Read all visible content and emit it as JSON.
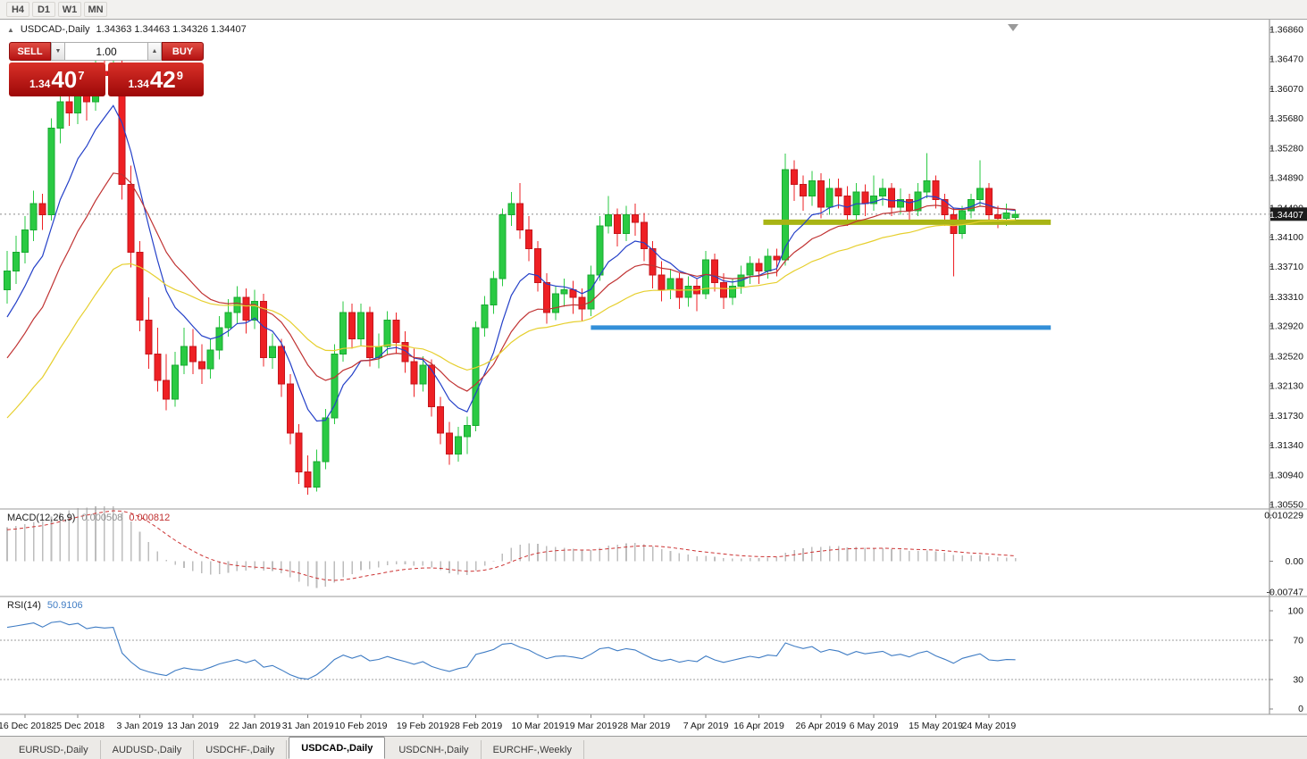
{
  "toolbar": {
    "timeframes": [
      "H4",
      "D1",
      "W1",
      "MN"
    ]
  },
  "chart": {
    "collapse_icon": "▲",
    "symbol_header": "USDCAD-,Daily",
    "ohlc_header": "1.34363 1.34463 1.34326 1.34407",
    "current_price": "1.34407"
  },
  "trade_panel": {
    "sell_label": "SELL",
    "buy_label": "BUY",
    "volume": "1.00",
    "spinner_down": "▼",
    "spinner_up": "▲",
    "sell_price": {
      "figure": "1.34",
      "pips": "40",
      "point": "7"
    },
    "buy_price": {
      "figure": "1.34",
      "pips": "42",
      "point": "9"
    }
  },
  "macd": {
    "label": "MACD(12,26,9)",
    "value_main": "0.000508",
    "value_signal": "0.000812"
  },
  "rsi": {
    "label": "RSI(14)",
    "value": "50.9106"
  },
  "tabs": {
    "items": [
      {
        "label": "EURUSD-,Daily"
      },
      {
        "label": "AUDUSD-,Daily"
      },
      {
        "label": "USDCHF-,Daily"
      },
      {
        "label": "USDCAD-,Daily"
      },
      {
        "label": "USDCNH-,Daily"
      },
      {
        "label": "EURCHF-,Weekly"
      }
    ],
    "active": "USDCAD-,Daily"
  },
  "chart_data": {
    "type": "candlestick",
    "title": "USDCAD Daily",
    "symbol": "USDCAD",
    "timeframe": "Daily",
    "y_range": [
      1.3055,
      1.3686
    ],
    "y_axis_labels": [
      "1.36860",
      "1.36470",
      "1.36070",
      "1.35680",
      "1.35280",
      "1.34890",
      "1.34490",
      "1.34100",
      "1.33710",
      "1.33310",
      "1.32920",
      "1.32520",
      "1.32130",
      "1.31730",
      "1.31340",
      "1.30940",
      "1.30550"
    ],
    "x_tick_labels": [
      "16 Dec 2018",
      "25 Dec 2018",
      "3 Jan 2019",
      "13 Jan 2019",
      "22 Jan 2019",
      "31 Jan 2019",
      "10 Feb 2019",
      "19 Feb 2019",
      "28 Feb 2019",
      "10 Mar 2019",
      "19 Mar 2019",
      "28 Mar 2019",
      "7 Apr 2019",
      "16 Apr 2019",
      "26 Apr 2019",
      "6 May 2019",
      "15 May 2019",
      "24 May 2019"
    ],
    "x_tick_indices": [
      2,
      8,
      15,
      21,
      28,
      34,
      40,
      47,
      53,
      60,
      66,
      72,
      79,
      85,
      92,
      98,
      105,
      111
    ],
    "colors": {
      "up": "#2aca43",
      "up_border": "#18a930",
      "down": "#ee2024",
      "down_border": "#c4161c",
      "bid_line": "#8a8a8a",
      "axis_text": "#141414",
      "badge_bg": "#1c1c1c",
      "badge_text": "#ffffff",
      "macd_hist": "#bdbdbd",
      "macd_signal": "#cc3333",
      "rsi_line": "#3f7cc4",
      "level_line": "#9e9e9e"
    },
    "ohlc": [
      [
        1.334,
        1.3392,
        1.3322,
        1.3365
      ],
      [
        1.3365,
        1.3412,
        1.3348,
        1.339
      ],
      [
        1.339,
        1.3438,
        1.3375,
        1.342
      ],
      [
        1.342,
        1.3472,
        1.3405,
        1.3455
      ],
      [
        1.3455,
        1.3468,
        1.342,
        1.344
      ],
      [
        1.344,
        1.3568,
        1.3432,
        1.3555
      ],
      [
        1.3555,
        1.3605,
        1.3535,
        1.359
      ],
      [
        1.359,
        1.3612,
        1.3558,
        1.3575
      ],
      [
        1.3575,
        1.363,
        1.356,
        1.3615
      ],
      [
        1.3615,
        1.3628,
        1.3565,
        1.359
      ],
      [
        1.359,
        1.3645,
        1.3578,
        1.363
      ],
      [
        1.363,
        1.365,
        1.36,
        1.3625
      ],
      [
        1.3625,
        1.3665,
        1.361,
        1.364
      ],
      [
        1.364,
        1.3655,
        1.346,
        1.348
      ],
      [
        1.348,
        1.3505,
        1.337,
        1.339
      ],
      [
        1.339,
        1.3405,
        1.3285,
        1.33
      ],
      [
        1.33,
        1.333,
        1.3235,
        1.3255
      ],
      [
        1.3255,
        1.329,
        1.3205,
        1.322
      ],
      [
        1.322,
        1.3255,
        1.318,
        1.3195
      ],
      [
        1.3195,
        1.3258,
        1.3185,
        1.324
      ],
      [
        1.324,
        1.329,
        1.3228,
        1.3265
      ],
      [
        1.3265,
        1.3288,
        1.3228,
        1.3245
      ],
      [
        1.3245,
        1.3268,
        1.3215,
        1.3235
      ],
      [
        1.3235,
        1.3275,
        1.3222,
        1.326
      ],
      [
        1.326,
        1.3305,
        1.3248,
        1.329
      ],
      [
        1.329,
        1.3328,
        1.3278,
        1.331
      ],
      [
        1.331,
        1.3345,
        1.3295,
        1.333
      ],
      [
        1.333,
        1.3342,
        1.3282,
        1.33
      ],
      [
        1.33,
        1.334,
        1.3288,
        1.3325
      ],
      [
        1.3325,
        1.3335,
        1.3238,
        1.325
      ],
      [
        1.325,
        1.3282,
        1.3235,
        1.3265
      ],
      [
        1.3265,
        1.3275,
        1.3198,
        1.3215
      ],
      [
        1.3215,
        1.3228,
        1.3135,
        1.315
      ],
      [
        1.315,
        1.3162,
        1.3082,
        1.3098
      ],
      [
        1.3098,
        1.312,
        1.3068,
        1.3078
      ],
      [
        1.3078,
        1.3128,
        1.3072,
        1.3112
      ],
      [
        1.3112,
        1.3182,
        1.3102,
        1.317
      ],
      [
        1.317,
        1.3268,
        1.3162,
        1.3255
      ],
      [
        1.3255,
        1.3325,
        1.3245,
        1.331
      ],
      [
        1.331,
        1.3322,
        1.3262,
        1.3275
      ],
      [
        1.3275,
        1.3322,
        1.3265,
        1.331
      ],
      [
        1.331,
        1.3318,
        1.3238,
        1.325
      ],
      [
        1.325,
        1.3282,
        1.3236,
        1.3265
      ],
      [
        1.3265,
        1.3312,
        1.3255,
        1.33
      ],
      [
        1.33,
        1.331,
        1.3255,
        1.327
      ],
      [
        1.327,
        1.3285,
        1.323,
        1.3245
      ],
      [
        1.3245,
        1.3262,
        1.3198,
        1.3215
      ],
      [
        1.3215,
        1.3252,
        1.3205,
        1.324
      ],
      [
        1.324,
        1.3248,
        1.3172,
        1.3185
      ],
      [
        1.3185,
        1.3198,
        1.3135,
        1.315
      ],
      [
        1.315,
        1.3165,
        1.3108,
        1.3122
      ],
      [
        1.3122,
        1.3158,
        1.3112,
        1.3145
      ],
      [
        1.3145,
        1.3172,
        1.3122,
        1.316
      ],
      [
        1.316,
        1.3298,
        1.3152,
        1.329
      ],
      [
        1.329,
        1.3332,
        1.3278,
        1.332
      ],
      [
        1.332,
        1.3365,
        1.3308,
        1.3355
      ],
      [
        1.3355,
        1.3448,
        1.3345,
        1.344
      ],
      [
        1.344,
        1.347,
        1.3425,
        1.3455
      ],
      [
        1.3455,
        1.3482,
        1.3408,
        1.342
      ],
      [
        1.342,
        1.3438,
        1.3378,
        1.3395
      ],
      [
        1.3395,
        1.3405,
        1.3338,
        1.335
      ],
      [
        1.335,
        1.3362,
        1.3295,
        1.331
      ],
      [
        1.331,
        1.3345,
        1.33,
        1.3335
      ],
      [
        1.3335,
        1.3355,
        1.3318,
        1.334
      ],
      [
        1.334,
        1.3352,
        1.3308,
        1.333
      ],
      [
        1.333,
        1.3342,
        1.3298,
        1.3315
      ],
      [
        1.3315,
        1.3372,
        1.3305,
        1.336
      ],
      [
        1.336,
        1.3438,
        1.3352,
        1.3425
      ],
      [
        1.3425,
        1.3465,
        1.3415,
        1.344
      ],
      [
        1.344,
        1.3448,
        1.3398,
        1.3415
      ],
      [
        1.3415,
        1.3452,
        1.3405,
        1.344
      ],
      [
        1.344,
        1.3455,
        1.3412,
        1.343
      ],
      [
        1.343,
        1.3442,
        1.3378,
        1.3395
      ],
      [
        1.3395,
        1.3405,
        1.3342,
        1.336
      ],
      [
        1.336,
        1.3378,
        1.3325,
        1.334
      ],
      [
        1.334,
        1.3368,
        1.3328,
        1.3355
      ],
      [
        1.3355,
        1.3362,
        1.3315,
        1.333
      ],
      [
        1.333,
        1.3358,
        1.3318,
        1.3345
      ],
      [
        1.3345,
        1.3355,
        1.3312,
        1.3335
      ],
      [
        1.3335,
        1.3392,
        1.3328,
        1.338
      ],
      [
        1.338,
        1.3388,
        1.3338,
        1.335
      ],
      [
        1.335,
        1.3362,
        1.3315,
        1.333
      ],
      [
        1.333,
        1.3355,
        1.332,
        1.3345
      ],
      [
        1.3345,
        1.3372,
        1.3335,
        1.336
      ],
      [
        1.336,
        1.3385,
        1.3348,
        1.3375
      ],
      [
        1.3375,
        1.3382,
        1.3348,
        1.3365
      ],
      [
        1.3365,
        1.3395,
        1.3355,
        1.3385
      ],
      [
        1.3385,
        1.3395,
        1.3358,
        1.338
      ],
      [
        1.338,
        1.3521,
        1.3372,
        1.35
      ],
      [
        1.35,
        1.3512,
        1.3458,
        1.348
      ],
      [
        1.348,
        1.3492,
        1.3445,
        1.3465
      ],
      [
        1.3465,
        1.3498,
        1.3452,
        1.3485
      ],
      [
        1.3485,
        1.3495,
        1.3435,
        1.345
      ],
      [
        1.345,
        1.3488,
        1.344,
        1.3475
      ],
      [
        1.3475,
        1.3488,
        1.3448,
        1.3465
      ],
      [
        1.3465,
        1.3478,
        1.3425,
        1.344
      ],
      [
        1.344,
        1.3482,
        1.343,
        1.347
      ],
      [
        1.347,
        1.348,
        1.3438,
        1.3455
      ],
      [
        1.3455,
        1.3492,
        1.3445,
        1.3465
      ],
      [
        1.3465,
        1.3488,
        1.3452,
        1.3475
      ],
      [
        1.3475,
        1.3482,
        1.3438,
        1.345
      ],
      [
        1.345,
        1.3475,
        1.344,
        1.346
      ],
      [
        1.346,
        1.3468,
        1.3428,
        1.3445
      ],
      [
        1.3445,
        1.3482,
        1.3438,
        1.347
      ],
      [
        1.347,
        1.3522,
        1.3462,
        1.3485
      ],
      [
        1.3485,
        1.3492,
        1.3448,
        1.346
      ],
      [
        1.346,
        1.3468,
        1.3425,
        1.344
      ],
      [
        1.344,
        1.3448,
        1.3358,
        1.3415
      ],
      [
        1.3415,
        1.3452,
        1.3408,
        1.3445
      ],
      [
        1.3445,
        1.3468,
        1.3435,
        1.346
      ],
      [
        1.346,
        1.3512,
        1.3452,
        1.3475
      ],
      [
        1.3475,
        1.3482,
        1.3428,
        1.344
      ],
      [
        1.344,
        1.3452,
        1.3422,
        1.3435
      ],
      [
        1.3435,
        1.3455,
        1.3425,
        1.3442
      ],
      [
        1.34363,
        1.34463,
        1.34326,
        1.34407
      ]
    ],
    "overlays": {
      "bid_line": 1.34407,
      "moving_averages": [
        {
          "name": "ma-fast-blue",
          "period": 8,
          "color": "#2440c8"
        },
        {
          "name": "ma-mid-red",
          "period": 17,
          "color": "#c03232"
        },
        {
          "name": "ma-slow-yellow",
          "period": 34,
          "color": "#e6cf2e"
        }
      ],
      "hlines": [
        {
          "name": "resistance-line-olive",
          "price": 1.343,
          "color": "#a8b414",
          "stroke_width": 6,
          "from_index": 85.5,
          "to_index": 118
        },
        {
          "name": "support-line-blue",
          "price": 1.329,
          "color": "#338fd8",
          "stroke_width": 5,
          "from_index": 66,
          "to_index": 118
        }
      ]
    },
    "indicators": {
      "macd": {
        "params": "12,26,9",
        "range": [
          -0.00747,
          0.010229
        ],
        "axis_labels": [
          "0.010229",
          "0.00",
          "-0.00747"
        ],
        "last_main": 0.000508,
        "last_signal": 0.000812
      },
      "rsi": {
        "period": 14,
        "range": [
          0,
          100
        ],
        "levels": [
          70,
          30
        ],
        "axis_labels": [
          "100",
          "70",
          "30",
          "0"
        ],
        "last_value": 50.9106
      }
    }
  }
}
